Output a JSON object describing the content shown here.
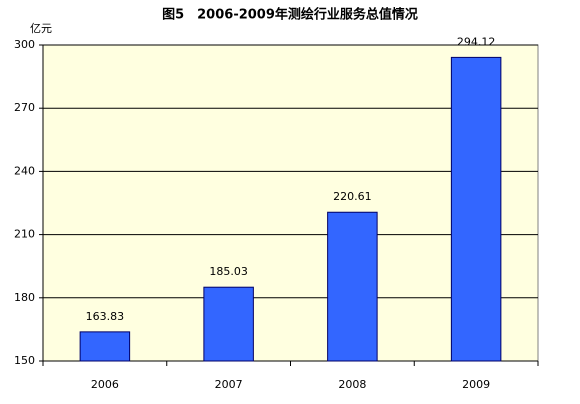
{
  "chart_data": {
    "type": "bar",
    "title": "图5　2006-2009年测绘行业服务总值情况",
    "y_unit": "亿元",
    "categories": [
      "2006",
      "2007",
      "2008",
      "2009"
    ],
    "values": [
      163.83,
      185.03,
      220.61,
      294.12
    ],
    "color": "#3366ff",
    "ylim": [
      150,
      300
    ],
    "yticks": [
      150,
      180,
      210,
      240,
      270,
      300
    ],
    "grid": true
  }
}
